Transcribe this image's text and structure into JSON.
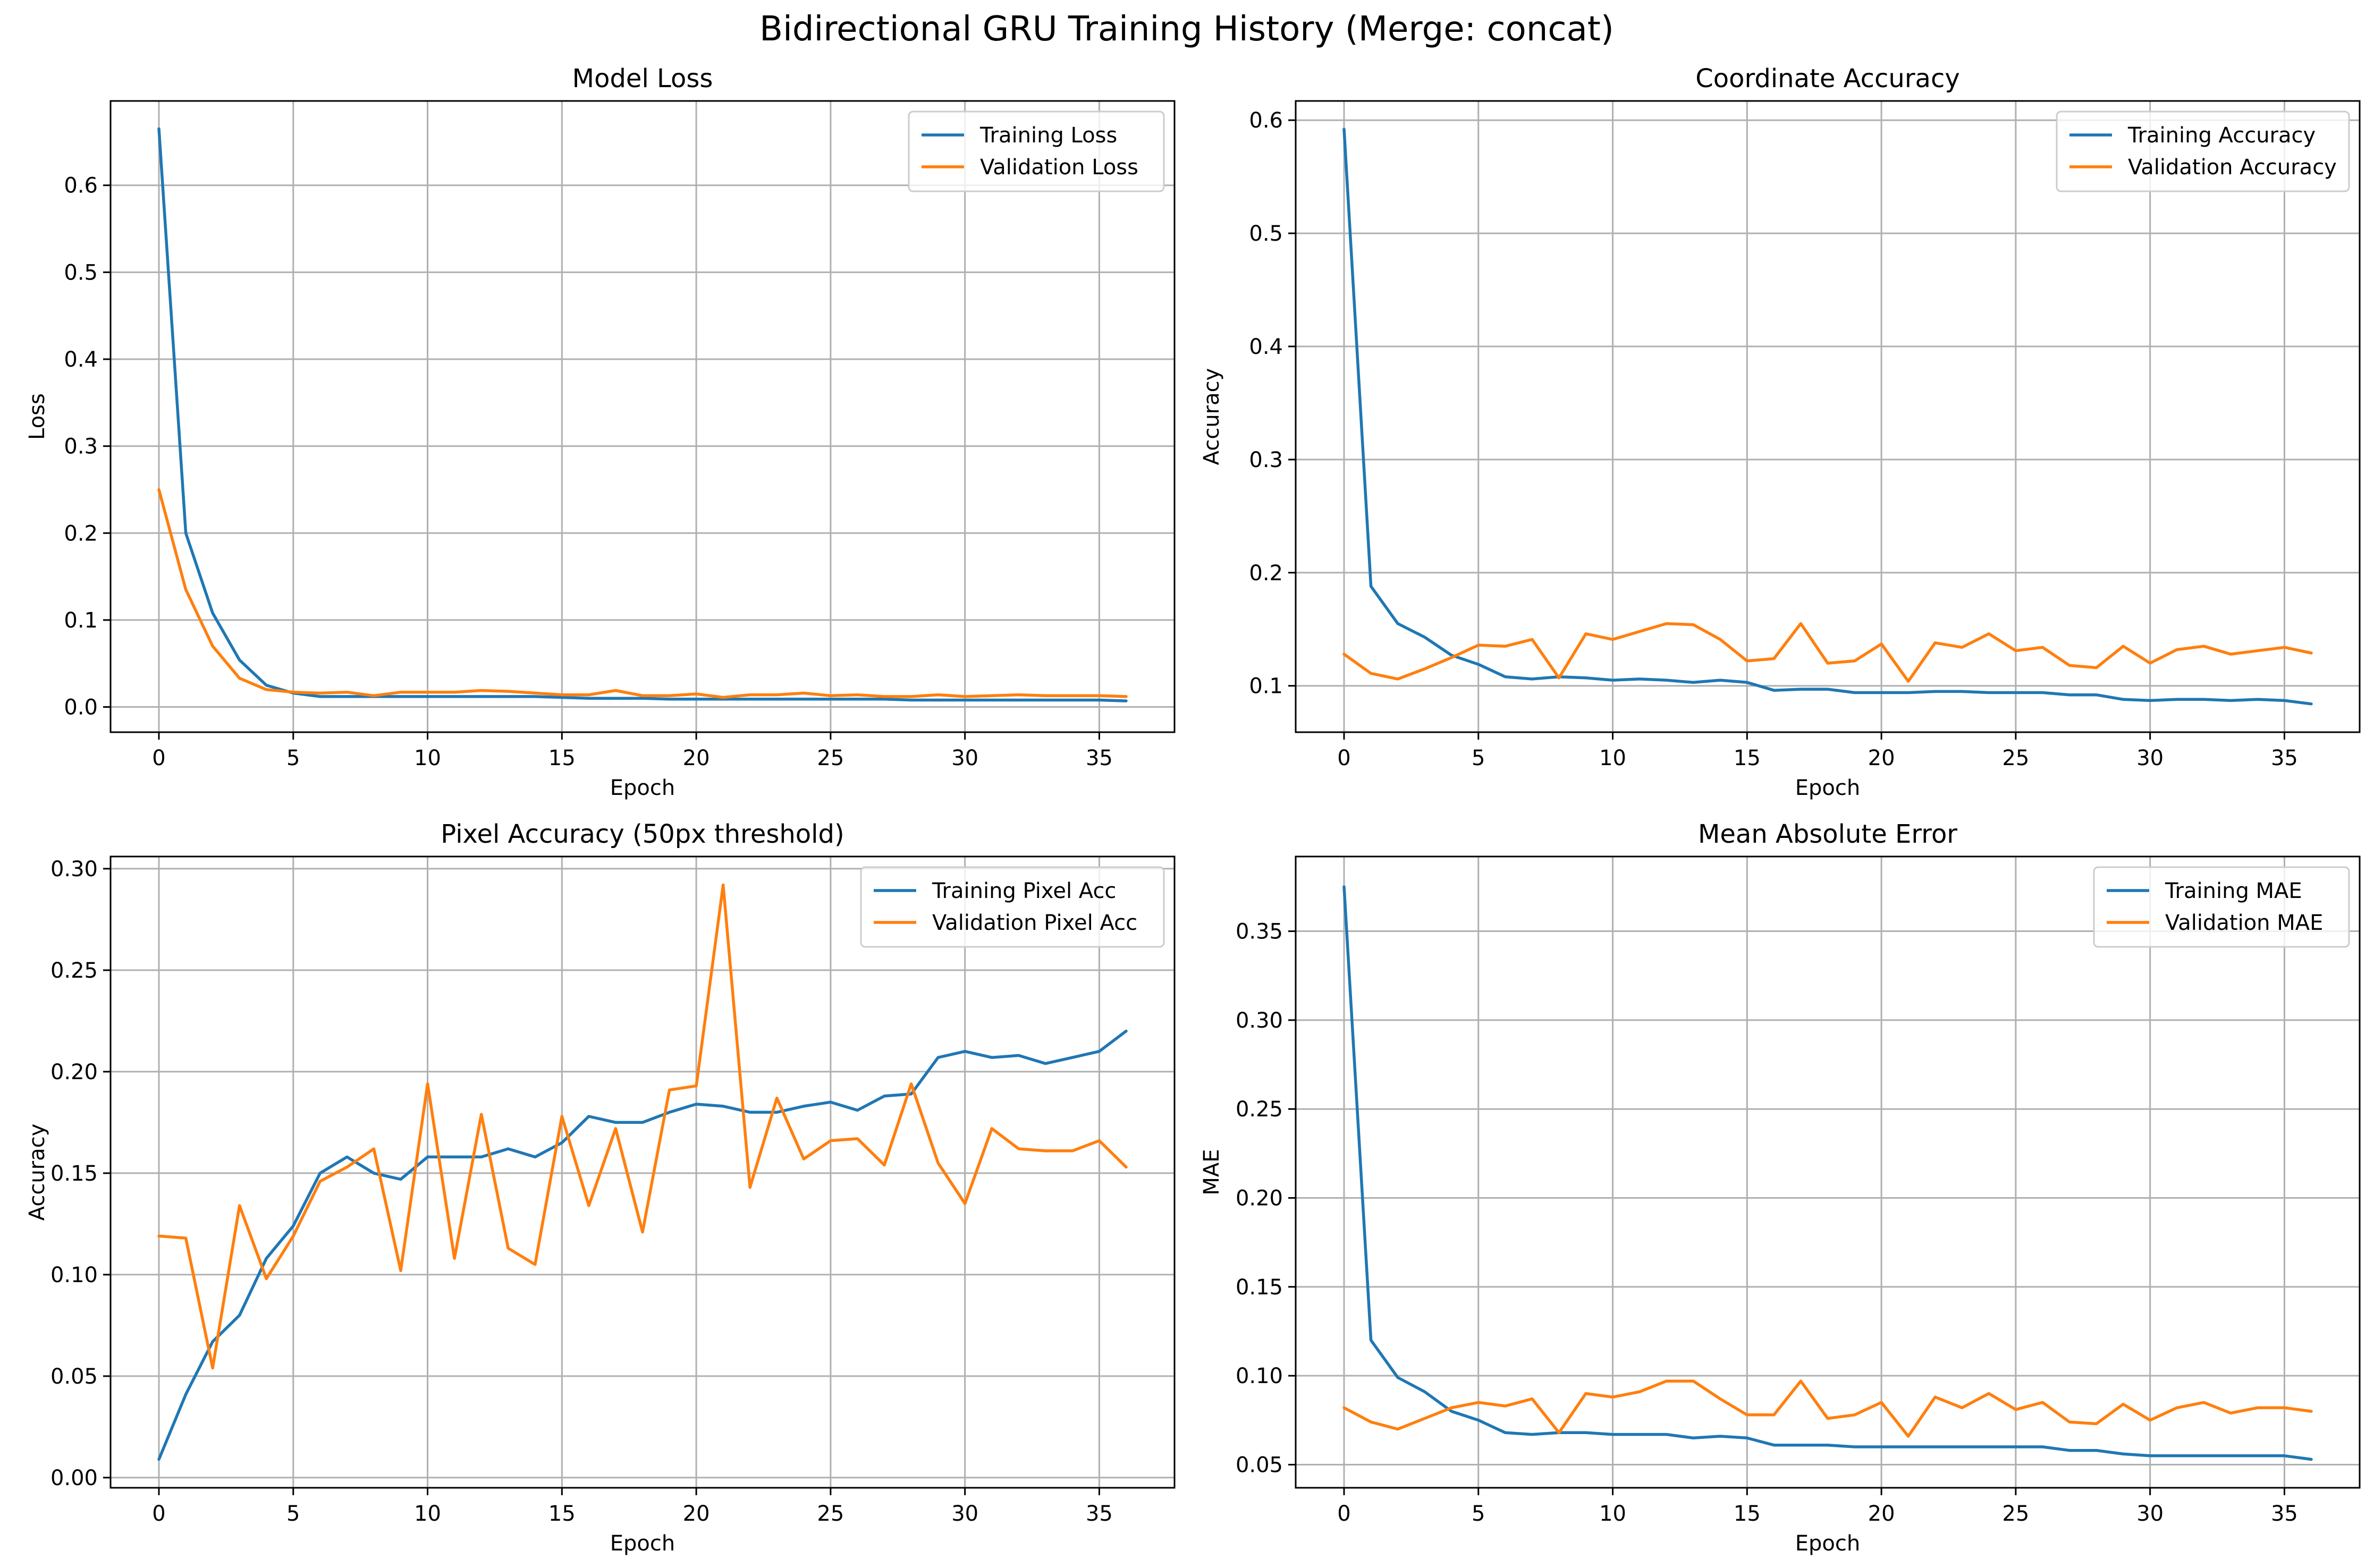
{
  "figure": {
    "title": "Bidirectional GRU Training History (Merge: concat)",
    "colors": {
      "train": "#1f77b4",
      "val": "#ff7f0e"
    }
  },
  "chart_data": [
    {
      "type": "line",
      "title": "Model Loss",
      "xlabel": "Epoch",
      "ylabel": "Loss",
      "xlim": [
        -1.8,
        37.8
      ],
      "ylim": [
        -0.029,
        0.697
      ],
      "xticks": [
        0,
        5,
        10,
        15,
        20,
        25,
        30,
        35
      ],
      "xtick_labels": [
        "0",
        "5",
        "10",
        "15",
        "20",
        "25",
        "30",
        "35"
      ],
      "yticks": [
        0.0,
        0.1,
        0.2,
        0.3,
        0.4,
        0.5,
        0.6
      ],
      "ytick_labels": [
        "0.0",
        "0.1",
        "0.2",
        "0.3",
        "0.4",
        "0.5",
        "0.6"
      ],
      "grid": true,
      "legend_position": "top-right",
      "series": [
        {
          "name": "Training Loss",
          "color": "#1f77b4",
          "values": [
            0.665,
            0.2,
            0.108,
            0.054,
            0.025,
            0.016,
            0.012,
            0.012,
            0.012,
            0.012,
            0.012,
            0.012,
            0.012,
            0.012,
            0.012,
            0.011,
            0.01,
            0.01,
            0.01,
            0.009,
            0.009,
            0.009,
            0.009,
            0.009,
            0.009,
            0.009,
            0.009,
            0.009,
            0.008,
            0.008,
            0.008,
            0.008,
            0.008,
            0.008,
            0.008,
            0.008,
            0.007
          ]
        },
        {
          "name": "Validation Loss",
          "color": "#ff7f0e",
          "values": [
            0.25,
            0.135,
            0.07,
            0.033,
            0.02,
            0.017,
            0.016,
            0.017,
            0.013,
            0.017,
            0.017,
            0.017,
            0.019,
            0.018,
            0.016,
            0.014,
            0.014,
            0.019,
            0.013,
            0.013,
            0.015,
            0.011,
            0.014,
            0.014,
            0.016,
            0.013,
            0.014,
            0.012,
            0.012,
            0.014,
            0.012,
            0.013,
            0.014,
            0.013,
            0.013,
            0.013,
            0.012
          ]
        }
      ]
    },
    {
      "type": "line",
      "title": "Coordinate Accuracy",
      "xlabel": "Epoch",
      "ylabel": "Accuracy",
      "xlim": [
        -1.8,
        37.8
      ],
      "ylim": [
        0.059,
        0.617
      ],
      "xticks": [
        0,
        5,
        10,
        15,
        20,
        25,
        30,
        35
      ],
      "xtick_labels": [
        "0",
        "5",
        "10",
        "15",
        "20",
        "25",
        "30",
        "35"
      ],
      "yticks": [
        0.1,
        0.2,
        0.3,
        0.4,
        0.5,
        0.6
      ],
      "ytick_labels": [
        "0.1",
        "0.2",
        "0.3",
        "0.4",
        "0.5",
        "0.6"
      ],
      "grid": true,
      "legend_position": "top-right",
      "series": [
        {
          "name": "Training Accuracy",
          "color": "#1f77b4",
          "values": [
            0.592,
            0.188,
            0.155,
            0.143,
            0.127,
            0.119,
            0.108,
            0.106,
            0.108,
            0.107,
            0.105,
            0.106,
            0.105,
            0.103,
            0.105,
            0.103,
            0.096,
            0.097,
            0.097,
            0.094,
            0.094,
            0.094,
            0.095,
            0.095,
            0.094,
            0.094,
            0.094,
            0.092,
            0.092,
            0.088,
            0.087,
            0.088,
            0.088,
            0.087,
            0.088,
            0.087,
            0.084
          ]
        },
        {
          "name": "Validation Accuracy",
          "color": "#ff7f0e",
          "values": [
            0.128,
            0.111,
            0.106,
            0.115,
            0.125,
            0.136,
            0.135,
            0.141,
            0.107,
            0.146,
            0.141,
            0.148,
            0.155,
            0.154,
            0.141,
            0.122,
            0.124,
            0.155,
            0.12,
            0.122,
            0.137,
            0.104,
            0.138,
            0.134,
            0.146,
            0.131,
            0.134,
            0.118,
            0.116,
            0.135,
            0.12,
            0.132,
            0.135,
            0.128,
            0.131,
            0.134,
            0.129
          ]
        }
      ]
    },
    {
      "type": "line",
      "title": "Pixel Accuracy (50px threshold)",
      "xlabel": "Epoch",
      "ylabel": "Accuracy",
      "xlim": [
        -1.8,
        37.8
      ],
      "ylim": [
        -0.005,
        0.306
      ],
      "xticks": [
        0,
        5,
        10,
        15,
        20,
        25,
        30,
        35
      ],
      "xtick_labels": [
        "0",
        "5",
        "10",
        "15",
        "20",
        "25",
        "30",
        "35"
      ],
      "yticks": [
        0.0,
        0.05,
        0.1,
        0.15,
        0.2,
        0.25,
        0.3
      ],
      "ytick_labels": [
        "0.00",
        "0.05",
        "0.10",
        "0.15",
        "0.20",
        "0.25",
        "0.30"
      ],
      "grid": true,
      "legend_position": "top-right",
      "series": [
        {
          "name": "Training Pixel Acc",
          "color": "#1f77b4",
          "values": [
            0.009,
            0.041,
            0.067,
            0.08,
            0.108,
            0.124,
            0.15,
            0.158,
            0.15,
            0.147,
            0.158,
            0.158,
            0.158,
            0.162,
            0.158,
            0.165,
            0.178,
            0.175,
            0.175,
            0.18,
            0.184,
            0.183,
            0.18,
            0.18,
            0.183,
            0.185,
            0.181,
            0.188,
            0.189,
            0.207,
            0.21,
            0.207,
            0.208,
            0.204,
            0.207,
            0.21,
            0.22
          ]
        },
        {
          "name": "Validation Pixel Acc",
          "color": "#ff7f0e",
          "values": [
            0.119,
            0.118,
            0.054,
            0.134,
            0.098,
            0.119,
            0.146,
            0.153,
            0.162,
            0.102,
            0.194,
            0.108,
            0.179,
            0.113,
            0.105,
            0.178,
            0.134,
            0.172,
            0.121,
            0.191,
            0.193,
            0.292,
            0.143,
            0.187,
            0.157,
            0.166,
            0.167,
            0.154,
            0.194,
            0.155,
            0.135,
            0.172,
            0.162,
            0.161,
            0.161,
            0.166,
            0.153
          ]
        }
      ]
    },
    {
      "type": "line",
      "title": "Mean Absolute Error",
      "xlabel": "Epoch",
      "ylabel": "MAE",
      "xlim": [
        -1.8,
        37.8
      ],
      "ylim": [
        0.037,
        0.392
      ],
      "xticks": [
        0,
        5,
        10,
        15,
        20,
        25,
        30,
        35
      ],
      "xtick_labels": [
        "0",
        "5",
        "10",
        "15",
        "20",
        "25",
        "30",
        "35"
      ],
      "yticks": [
        0.05,
        0.1,
        0.15,
        0.2,
        0.25,
        0.3,
        0.35
      ],
      "ytick_labels": [
        "0.05",
        "0.10",
        "0.15",
        "0.20",
        "0.25",
        "0.30",
        "0.35"
      ],
      "grid": true,
      "legend_position": "top-right",
      "series": [
        {
          "name": "Training MAE",
          "color": "#1f77b4",
          "values": [
            0.375,
            0.12,
            0.099,
            0.091,
            0.08,
            0.075,
            0.068,
            0.067,
            0.068,
            0.068,
            0.067,
            0.067,
            0.067,
            0.065,
            0.066,
            0.065,
            0.061,
            0.061,
            0.061,
            0.06,
            0.06,
            0.06,
            0.06,
            0.06,
            0.06,
            0.06,
            0.06,
            0.058,
            0.058,
            0.056,
            0.055,
            0.055,
            0.055,
            0.055,
            0.055,
            0.055,
            0.053
          ]
        },
        {
          "name": "Validation MAE",
          "color": "#ff7f0e",
          "values": [
            0.082,
            0.074,
            0.07,
            0.076,
            0.082,
            0.085,
            0.083,
            0.087,
            0.068,
            0.09,
            0.088,
            0.091,
            0.097,
            0.097,
            0.087,
            0.078,
            0.078,
            0.097,
            0.076,
            0.078,
            0.085,
            0.066,
            0.088,
            0.082,
            0.09,
            0.081,
            0.085,
            0.074,
            0.073,
            0.084,
            0.075,
            0.082,
            0.085,
            0.079,
            0.082,
            0.082,
            0.08
          ]
        }
      ]
    }
  ]
}
